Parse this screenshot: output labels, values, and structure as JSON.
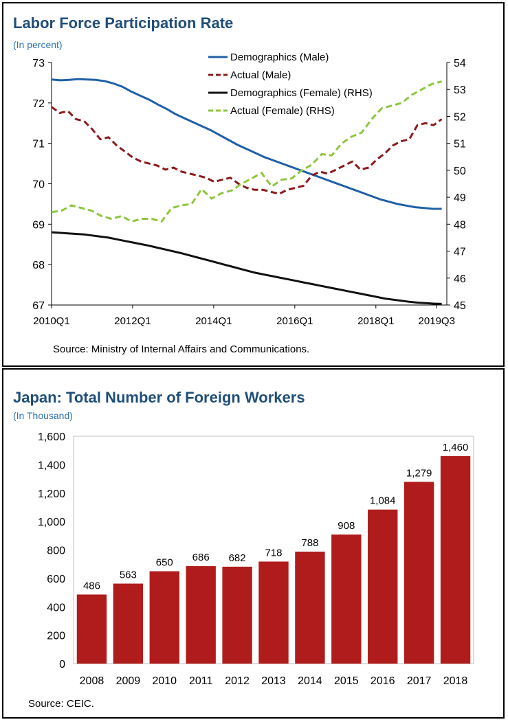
{
  "charts": [
    {
      "type": "line",
      "title": "Labor Force Participation Rate",
      "subtitle": "(In percent)",
      "source": "Source: Ministry of Internal Affairs and Communications.",
      "x_tick_labels": [
        "2010Q1",
        "2012Q1",
        "2014Q1",
        "2016Q1",
        "2018Q1",
        "2019Q3"
      ],
      "x_tick_index": [
        0,
        8,
        16,
        24,
        32,
        38
      ],
      "y_left": {
        "range": [
          67,
          73
        ],
        "ticks": [
          "67",
          "68",
          "69",
          "70",
          "71",
          "72",
          "73"
        ]
      },
      "y_right": {
        "range": [
          45,
          54
        ],
        "ticks": [
          "45",
          "46",
          "47",
          "48",
          "49",
          "50",
          "51",
          "52",
          "53",
          "54"
        ]
      },
      "legend_position": "top-right",
      "series": [
        {
          "name": "Demographics (Male)",
          "axis": "left",
          "color": "#1f5fa6",
          "style": "solid",
          "values": [
            72.58,
            72.56,
            72.57,
            72.59,
            72.58,
            72.57,
            72.54,
            72.48,
            72.4,
            72.28,
            72.18,
            72.08,
            71.96,
            71.85,
            71.72,
            71.62,
            71.52,
            71.42,
            71.32,
            71.2,
            71.08,
            70.96,
            70.86,
            70.76,
            70.66,
            70.58,
            70.5,
            70.42,
            70.34,
            70.26,
            70.18,
            70.1,
            70.02,
            69.94,
            69.86,
            69.78,
            69.7,
            69.62,
            69.56,
            69.5,
            69.46,
            69.42,
            69.4,
            69.38,
            69.38
          ]
        },
        {
          "name": "Actual (Male)",
          "axis": "left",
          "color": "#8b1a1a",
          "style": "dashed",
          "values": [
            71.9,
            71.75,
            71.8,
            71.6,
            71.55,
            71.35,
            71.1,
            71.15,
            70.95,
            70.8,
            70.65,
            70.55,
            70.5,
            70.45,
            70.35,
            70.4,
            70.3,
            70.25,
            70.2,
            70.15,
            70.05,
            70.1,
            70.15,
            70.0,
            69.9,
            69.85,
            69.85,
            69.8,
            69.75,
            69.85,
            69.9,
            69.95,
            70.2,
            70.3,
            70.25,
            70.35,
            70.45,
            70.55,
            70.35,
            70.4,
            70.6,
            70.75,
            70.95,
            71.05,
            71.1,
            71.45,
            71.5,
            71.45,
            71.6
          ]
        },
        {
          "name": "Demographics (Female) (RHS)",
          "axis": "right",
          "color": "#111111",
          "style": "solid",
          "values": [
            47.7,
            47.68,
            47.66,
            47.64,
            47.62,
            47.58,
            47.54,
            47.5,
            47.44,
            47.38,
            47.32,
            47.26,
            47.2,
            47.13,
            47.06,
            46.99,
            46.92,
            46.84,
            46.76,
            46.68,
            46.6,
            46.52,
            46.44,
            46.36,
            46.28,
            46.2,
            46.14,
            46.08,
            46.02,
            45.96,
            45.9,
            45.84,
            45.78,
            45.72,
            45.66,
            45.6,
            45.54,
            45.48,
            45.42,
            45.36,
            45.3,
            45.24,
            45.2,
            45.16,
            45.12,
            45.09,
            45.07,
            45.05,
            45.04
          ]
        },
        {
          "name": "Actual (Female) (RHS)",
          "axis": "right",
          "color": "#8dc63f",
          "style": "dashed",
          "values": [
            48.45,
            48.5,
            48.7,
            48.6,
            48.5,
            48.3,
            48.2,
            48.3,
            48.1,
            48.2,
            48.2,
            48.1,
            48.6,
            48.7,
            48.75,
            49.3,
            48.95,
            49.15,
            49.25,
            49.5,
            49.7,
            49.9,
            49.4,
            49.65,
            49.7,
            50.0,
            50.2,
            50.6,
            50.55,
            51.0,
            51.25,
            51.4,
            51.9,
            52.3,
            52.4,
            52.5,
            52.8,
            53.0,
            53.2,
            53.3
          ]
        }
      ]
    },
    {
      "type": "bar",
      "title": "Japan: Total Number of Foreign Workers",
      "subtitle": "(In Thousand)",
      "source": "Source: CEIC.",
      "categories": [
        "2008",
        "2009",
        "2010",
        "2011",
        "2012",
        "2013",
        "2014",
        "2015",
        "2016",
        "2017",
        "2018"
      ],
      "values": [
        486,
        563,
        650,
        686,
        682,
        718,
        788,
        908,
        1084,
        1279,
        1460
      ],
      "data_labels": [
        "486",
        "563",
        "650",
        "686",
        "682",
        "718",
        "788",
        "908",
        "1,084",
        "1,279",
        "1,460"
      ],
      "ylim": [
        0,
        1600
      ],
      "y_ticks": [
        "0",
        "200",
        "400",
        "600",
        "800",
        "1,000",
        "1,200",
        "1,400",
        "1,600"
      ],
      "bar_color": "#b01c1c"
    }
  ]
}
